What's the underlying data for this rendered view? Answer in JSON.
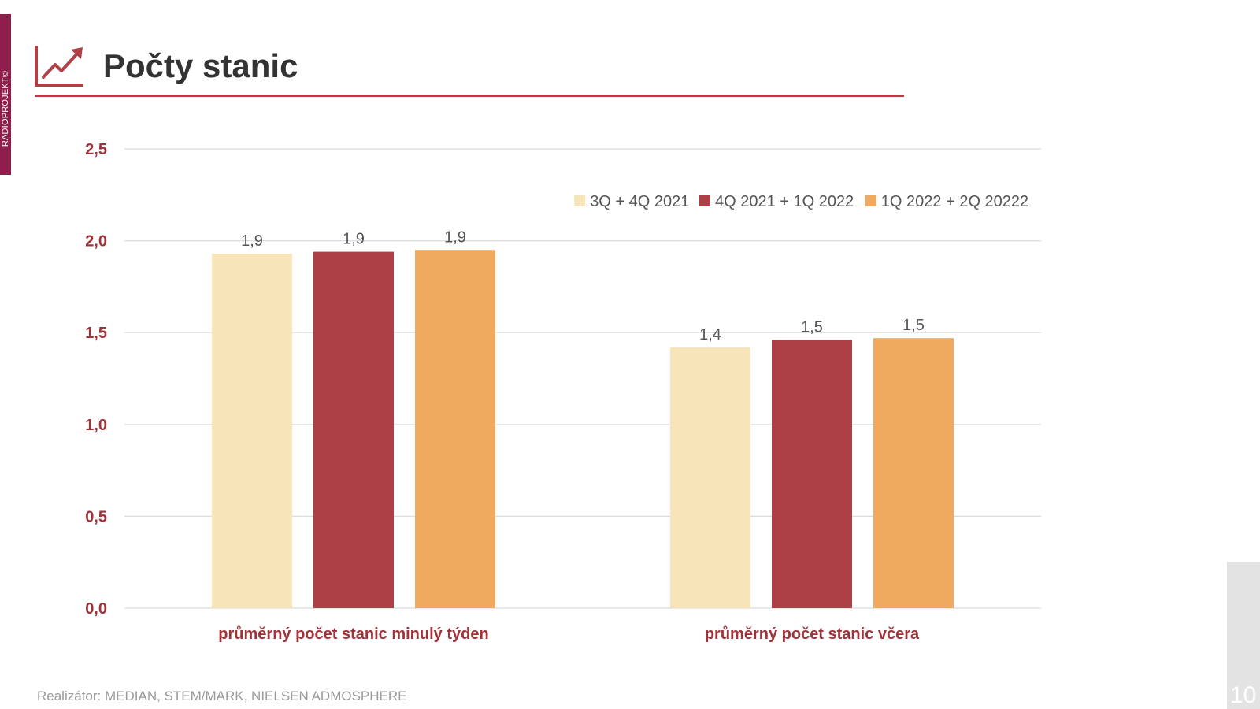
{
  "slide": {
    "title": "Počty stanic",
    "side_label": "RADIOPROJEKT©",
    "footer": "Realizátor: MEDIAN, STEM/MARK, NIELSEN ADMOSPHERE",
    "page_number": "10",
    "icon": "trending-up-chart-icon"
  },
  "colors": {
    "accent": "#b04046",
    "side_tab": "#8e1f4c",
    "axis_text": "#a0323a",
    "label_text": "#555555"
  },
  "chart_data": {
    "type": "bar",
    "title": "Počty stanic",
    "xlabel": "",
    "ylabel": "",
    "ylim": [
      0,
      2.5
    ],
    "yticks": [
      0.0,
      0.5,
      1.0,
      1.5,
      2.0,
      2.5
    ],
    "ytick_labels": [
      "0,0",
      "0,5",
      "1,0",
      "1,5",
      "2,0",
      "2,5"
    ],
    "grid": true,
    "legend_position": "top-right",
    "categories": [
      "průměrný počet stanic minulý týden",
      "průměrný počet stanic včera"
    ],
    "series": [
      {
        "name": "3Q + 4Q 2021",
        "color": "#f7e4b8",
        "values": [
          1.93,
          1.42
        ],
        "labels": [
          "1,9",
          "1,4"
        ]
      },
      {
        "name": "4Q 2021 + 1Q 2022",
        "color": "#ad4047",
        "values": [
          1.94,
          1.46
        ],
        "labels": [
          "1,9",
          "1,5"
        ]
      },
      {
        "name": "1Q 2022 + 2Q 20222",
        "color": "#f0aa5f",
        "values": [
          1.95,
          1.47
        ],
        "labels": [
          "1,9",
          "1,5"
        ]
      }
    ]
  }
}
